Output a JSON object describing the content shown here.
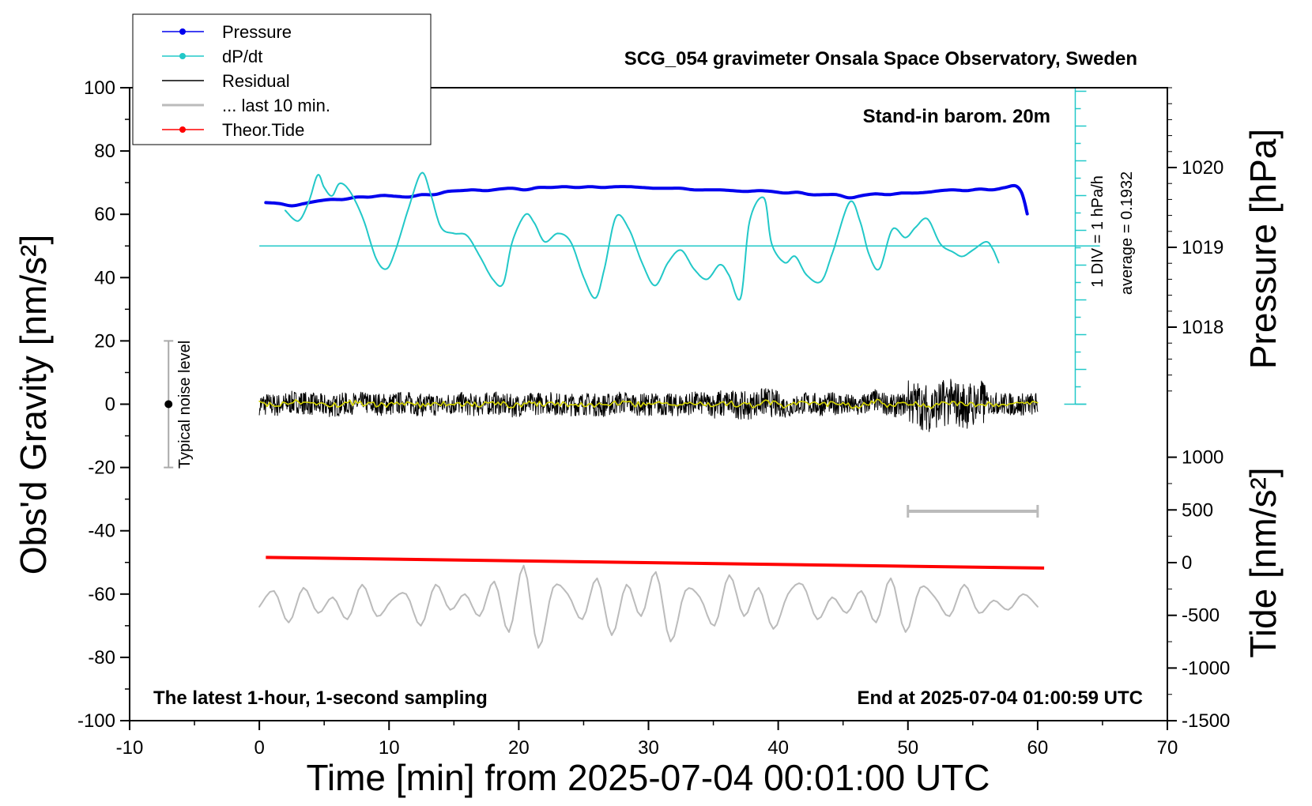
{
  "chart_data": {
    "type": "line",
    "title": "SCG_054 gravimeter Onsala Space Observatory, Sweden",
    "xlabel": "Time [min] from 2025-07-04 00:01:00 UTC",
    "ylabel_left": "Obs'd Gravity [nm/s²]",
    "ylabel_pressure": "Pressure [hPa]",
    "ylabel_tide": "Tide [nm/s²]",
    "xlim": [
      -10,
      70
    ],
    "ylim": [
      -100,
      100
    ],
    "pressure_lim": [
      1017.1,
      1021.2
    ],
    "tide_lim": [
      -1500,
      1000
    ],
    "x_ticks": [
      "-10",
      "0",
      "10",
      "20",
      "30",
      "40",
      "50",
      "60",
      "70"
    ],
    "y_ticks": [
      "-100",
      "-80",
      "-60",
      "-40",
      "-20",
      "0",
      "20",
      "40",
      "60",
      "80",
      "100"
    ],
    "pressure_ticks": [
      "1018",
      "1019",
      "1020"
    ],
    "tide_ticks": [
      "-1500",
      "-1000",
      "-500",
      "0",
      "500",
      "1000"
    ],
    "legend": [
      "Pressure",
      "dP/dt",
      "Residual",
      "... last 10 min.",
      "Theor.Tide"
    ],
    "colors": {
      "pressure": "#0000ee",
      "dpdt": "#22c8c8",
      "residual": "#000000",
      "last10": "#bbbbbb",
      "tide": "#ff0000",
      "smooth_residual": "#d4d400"
    },
    "annotations": {
      "barometer": "Stand-in barom. 20m",
      "scale": "1 DIV = 1 hPa/h",
      "average": "average = 0.1932",
      "noise": "Typical noise level",
      "bottom_left": "The latest 1-hour, 1-second sampling",
      "bottom_right": "End at 2025-07-04 01:00:59 UTC"
    },
    "series": [
      {
        "name": "Pressure",
        "unit": "hPa",
        "x": [
          0.5,
          1.5,
          2.5,
          3.5,
          4.5,
          5.5,
          6.5,
          7.5,
          8.5,
          9.5,
          10.5,
          11.5,
          12.5,
          13.5,
          14.5,
          15.5,
          16.5,
          17.5,
          18.5,
          19.5,
          20.5,
          21.5,
          22.5,
          23.5,
          24.5,
          25.5,
          26.5,
          27.5,
          28.5,
          29.5,
          30.5,
          31.5,
          32.5,
          33.5,
          34.5,
          35.5,
          36.5,
          37.5,
          38.5,
          39.5,
          40.5,
          41.5,
          42.5,
          43.5,
          44.5,
          45.5,
          46.5,
          47.5,
          48.5,
          49.5,
          50.5,
          51.5,
          52.5,
          53.5,
          54.5,
          55.5,
          56.5,
          57.5,
          58.3,
          58.8,
          59.2
        ],
        "values": [
          1019.56,
          1019.55,
          1019.52,
          1019.55,
          1019.58,
          1019.6,
          1019.6,
          1019.63,
          1019.63,
          1019.65,
          1019.64,
          1019.63,
          1019.66,
          1019.66,
          1019.7,
          1019.71,
          1019.72,
          1019.71,
          1019.73,
          1019.74,
          1019.72,
          1019.75,
          1019.75,
          1019.76,
          1019.75,
          1019.76,
          1019.75,
          1019.76,
          1019.76,
          1019.75,
          1019.74,
          1019.74,
          1019.74,
          1019.72,
          1019.72,
          1019.72,
          1019.71,
          1019.7,
          1019.71,
          1019.7,
          1019.68,
          1019.69,
          1019.66,
          1019.66,
          1019.66,
          1019.62,
          1019.65,
          1019.67,
          1019.66,
          1019.68,
          1019.68,
          1019.69,
          1019.71,
          1019.72,
          1019.71,
          1019.73,
          1019.72,
          1019.75,
          1019.77,
          1019.67,
          1019.42
        ]
      },
      {
        "name": "dP/dt",
        "unit": "hPa/h",
        "x": [
          2,
          3,
          3.8,
          4.5,
          5,
          5.6,
          6.2,
          7,
          8,
          9,
          9.8,
          10.5,
          11.5,
          12.5,
          13.2,
          14,
          15,
          16,
          17,
          18,
          18.8,
          19.5,
          20.5,
          21.2,
          22,
          23,
          24,
          25,
          25.9,
          26.6,
          27.5,
          28.5,
          29.5,
          30.5,
          31.5,
          32.5,
          33.5,
          34.5,
          35.5,
          36.2,
          37.1,
          37.8,
          38.9,
          39.5,
          40.5,
          41.3,
          42.2,
          43.3,
          44.2,
          45.5,
          46.3,
          47,
          47.8,
          48.8,
          49.8,
          50.6,
          51.5,
          52.5,
          53.5,
          54.2,
          55,
          56,
          56.5,
          57
        ],
        "values": [
          1.7,
          1.2,
          2.1,
          3.4,
          2.8,
          2.4,
          3,
          2.6,
          1.3,
          -0.6,
          -1.1,
          -0.2,
          1.8,
          3.5,
          2.5,
          0.9,
          0.6,
          0.5,
          -0.5,
          -1.6,
          -1.8,
          0.2,
          1.5,
          1.1,
          0.2,
          0.6,
          0.2,
          -1.5,
          -2.5,
          -1.1,
          1.4,
          0.8,
          -0.8,
          -1.9,
          -0.8,
          -0.2,
          -1.1,
          -1.6,
          -0.9,
          -1.4,
          -2.5,
          1.2,
          2.3,
          0.1,
          -0.8,
          -0.5,
          -1.4,
          -1.7,
          -0.3,
          2.1,
          1.2,
          -0.4,
          -1.1,
          0.8,
          0.4,
          0.9,
          1.3,
          0.1,
          -0.3,
          -0.5,
          -0.2,
          0.2,
          -0.1,
          -0.8
        ]
      },
      {
        "name": "Residual",
        "unit": "nm/s²",
        "x_range": [
          0,
          60
        ],
        "values": [
          0.5,
          -1,
          2,
          0,
          -1.5,
          1,
          0.5,
          -0.5,
          1.5,
          -1,
          0,
          0.8,
          -0.8,
          1.2,
          -1.4,
          0.4,
          1,
          -0.6,
          0.3,
          -1.2,
          1.8,
          -0.5,
          0.2,
          -1,
          1.1,
          -0.3,
          0.6,
          -1.5,
          2.4,
          -2,
          1,
          -0.4,
          0.8,
          -2.5,
          3,
          -1.8,
          1.5,
          -3.2,
          2,
          -0.8,
          0.6,
          0.3,
          -0.2,
          0.5
        ]
      },
      {
        "name": "... last 10 min.",
        "x_range": [
          0,
          60
        ],
        "values": [
          -1,
          4,
          -6,
          5,
          -3,
          2,
          -5,
          6,
          -4,
          1,
          3,
          -7,
          6,
          -2,
          3,
          -4,
          7,
          -9,
          12,
          -14,
          5,
          3,
          -5,
          8,
          -10,
          6,
          -4,
          10,
          -12,
          4,
          2,
          -7,
          9,
          -4,
          5,
          -8,
          3,
          6,
          -5,
          2,
          -3,
          4,
          -6,
          8,
          -9,
          5,
          2,
          -4,
          6,
          -3,
          1,
          -2,
          3,
          -1
        ]
      },
      {
        "name": "Theor.Tide",
        "unit": "nm/s²",
        "x": [
          0.5,
          60.5
        ],
        "values": [
          50,
          -52
        ]
      }
    ]
  }
}
